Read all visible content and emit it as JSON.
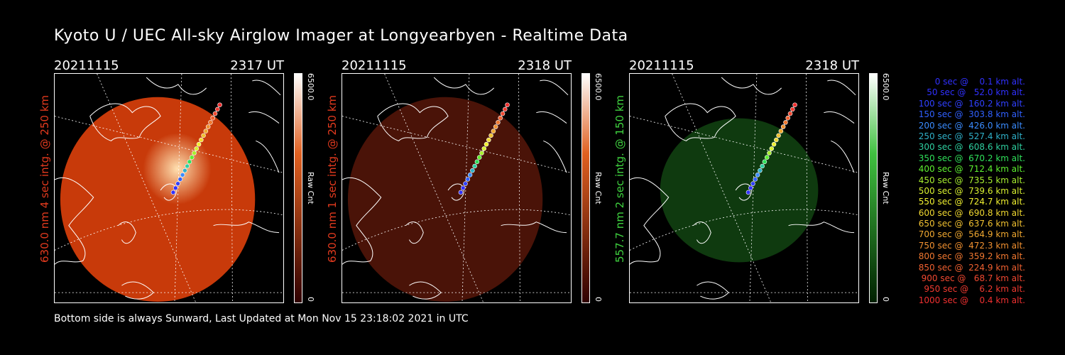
{
  "title": "Kyoto U / UEC All-sky Airglow Imager at Longyearbyen - Realtime Data",
  "footer": "Bottom side is always Sunward, Last Updated at Mon Nov 15 23:18:02 2021 in UTC",
  "panels": [
    {
      "date": "20211115",
      "time": "2317 UT",
      "side_label": "630.0 nm  4 sec intg. @ 250 km",
      "cbar_max": "6500.0",
      "cbar_unit": "Raw Cnt",
      "cbar_min": "0",
      "label_color": "#e33a1e",
      "glow": "#c83a0a"
    },
    {
      "date": "20211115",
      "time": "2318 UT",
      "side_label": "630.0 nm  1 sec intg. @ 250 km",
      "cbar_max": "6500.0",
      "cbar_unit": "Raw Cnt",
      "cbar_min": "0",
      "label_color": "#e33a1e",
      "glow": "#4a1308"
    },
    {
      "date": "20211115",
      "time": "2318 UT",
      "side_label": "557.7 nm  2 sec intg. @ 150 km",
      "cbar_max": "6500.0",
      "cbar_unit": "Raw Cnt",
      "cbar_min": "0",
      "label_color": "#3fd23f",
      "glow": "#0f3a0f"
    }
  ],
  "legend": [
    {
      "text": "0 sec @    0.1 km alt.",
      "color": "#3030ff"
    },
    {
      "text": "50 sec @   52.0 km alt.",
      "color": "#3030ff"
    },
    {
      "text": "100 sec @  160.2 km alt.",
      "color": "#3040ff"
    },
    {
      "text": "150 sec @  303.8 km alt.",
      "color": "#3060ff"
    },
    {
      "text": "200 sec @  426.0 km alt.",
      "color": "#3a8cff"
    },
    {
      "text": "250 sec @  527.4 km alt.",
      "color": "#2fb0c8"
    },
    {
      "text": "300 sec @  608.6 km alt.",
      "color": "#2ed0a0"
    },
    {
      "text": "350 sec @  670.2 km alt.",
      "color": "#2fe05a"
    },
    {
      "text": "400 sec @  712.4 km alt.",
      "color": "#5ef030"
    },
    {
      "text": "450 sec @  735.5 km alt.",
      "color": "#a8f030"
    },
    {
      "text": "500 sec @  739.6 km alt.",
      "color": "#d8f030"
    },
    {
      "text": "550 sec @  724.7 km alt.",
      "color": "#f0f030"
    },
    {
      "text": "600 sec @  690.8 km alt.",
      "color": "#f0d830"
    },
    {
      "text": "650 sec @  637.6 km alt.",
      "color": "#f0c030"
    },
    {
      "text": "700 sec @  564.9 km alt.",
      "color": "#f0a830"
    },
    {
      "text": "750 sec @  472.3 km alt.",
      "color": "#f09030"
    },
    {
      "text": "800 sec @  359.2 km alt.",
      "color": "#f07830"
    },
    {
      "text": "850 sec @  224.9 km alt.",
      "color": "#f06030"
    },
    {
      "text": "900 sec @   68.7 km alt.",
      "color": "#f04830"
    },
    {
      "text": "950 sec @    6.2 km alt.",
      "color": "#f03a30"
    },
    {
      "text": "1000 sec @    0.4 km alt.",
      "color": "#f03030"
    }
  ]
}
